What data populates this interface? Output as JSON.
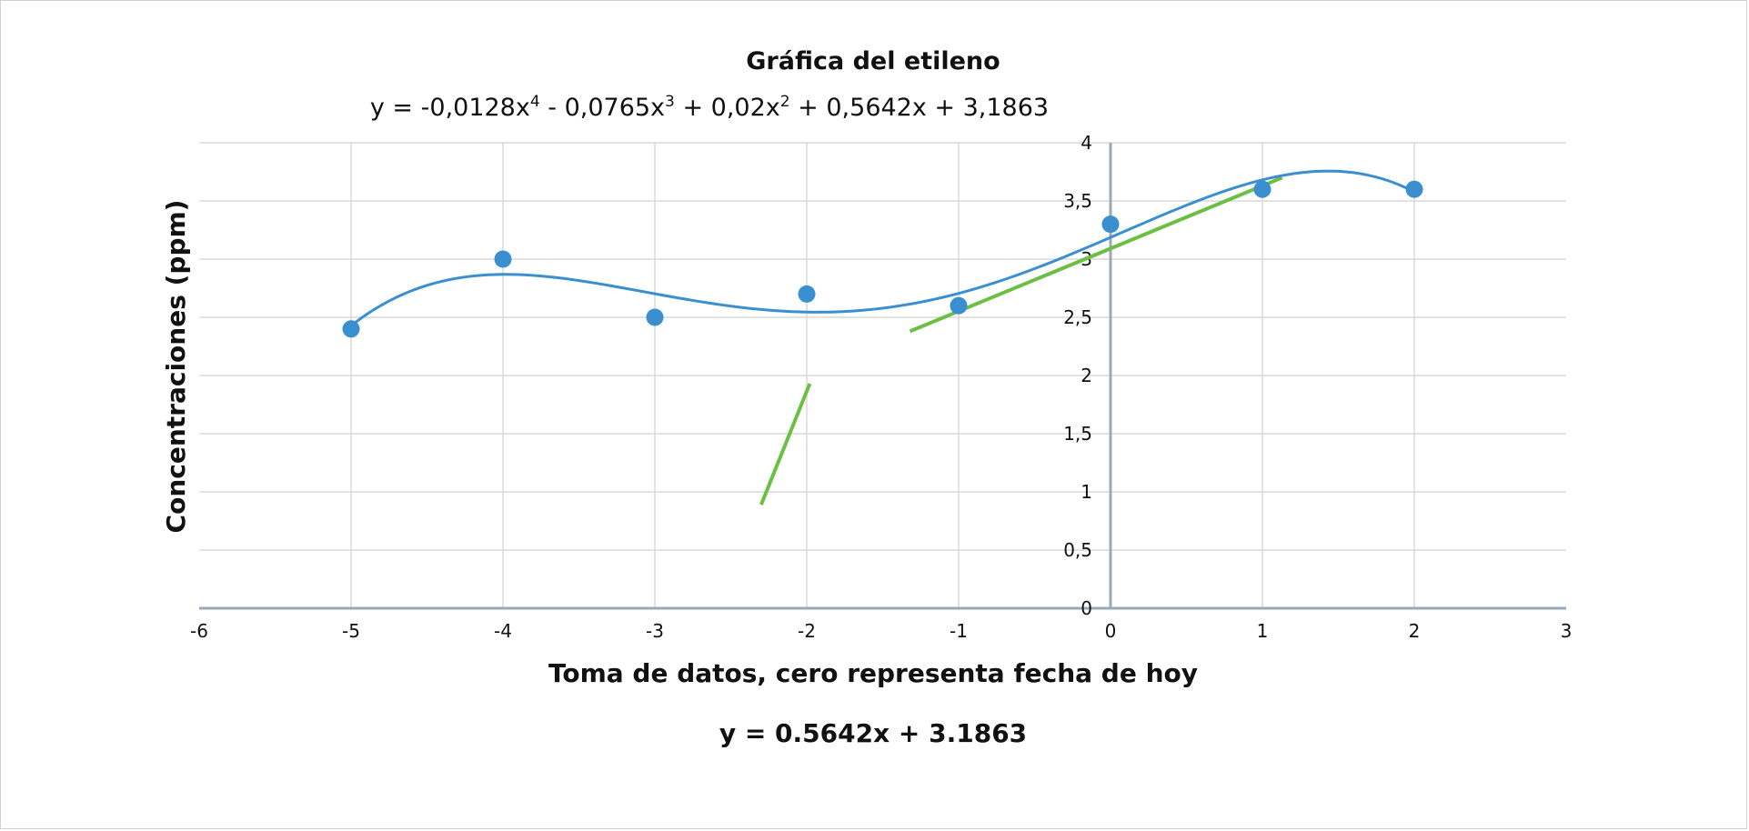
{
  "chart_data": {
    "type": "scatter",
    "title": "Gráfica del etileno",
    "equation_parts": [
      "y = -0,0128x",
      "4",
      " - 0,0765x",
      "3",
      " + 0,02x",
      "2",
      " + 0,5642x + 3,1863"
    ],
    "xlabel": "Toma de datos, cero representa fecha de hoy",
    "ylabel": "Concentraciones (ppm)",
    "linear_equation": "y = 0.5642x + 3.1863",
    "xlim": [
      -6,
      3
    ],
    "ylim": [
      0,
      4
    ],
    "x_ticks": [
      "-6",
      "-5",
      "-4",
      "-3",
      "-2",
      "-1",
      "0",
      "1",
      "2",
      "3"
    ],
    "y_ticks": [
      "0",
      "0,5",
      "1",
      "1,5",
      "2",
      "2,5",
      "3",
      "3,5",
      "4"
    ],
    "grid": true,
    "series": [
      {
        "color": "#3a8fd0",
        "points": [
          {
            "x": -5,
            "y": 2.4
          },
          {
            "x": -4,
            "y": 3.0
          },
          {
            "x": -3,
            "y": 2.5
          },
          {
            "x": -2,
            "y": 2.7
          },
          {
            "x": -1,
            "y": 2.6
          },
          {
            "x": 0,
            "y": 3.3
          },
          {
            "x": 1,
            "y": 3.6
          },
          {
            "x": 2,
            "y": 3.6
          }
        ]
      }
    ],
    "polynomial_trendline": {
      "color": "#3a8fd0",
      "coefficients": [
        -0.0128,
        -0.0765,
        0.02,
        0.5642,
        3.1863
      ],
      "x_range": [
        -5,
        2
      ]
    },
    "green_lines": {
      "color": "#6bbf45",
      "segments": [
        {
          "x1": -2.3,
          "y1": 0.89,
          "x2": -1.98,
          "y2": 1.93
        },
        {
          "x1": -1.32,
          "y1": 2.38,
          "x2": 1.13,
          "y2": 3.7
        }
      ]
    }
  }
}
